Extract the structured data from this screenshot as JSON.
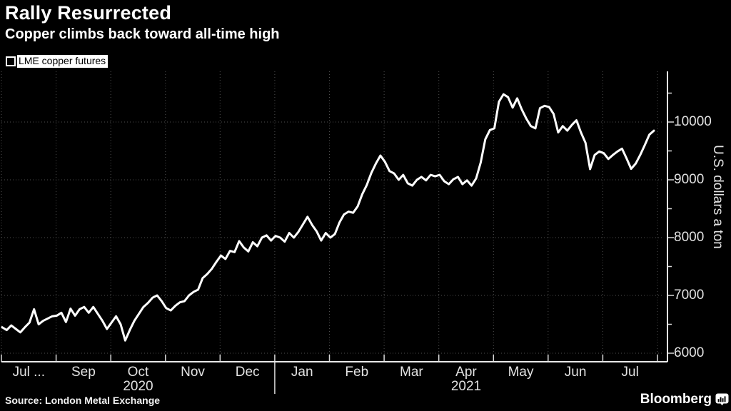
{
  "header": {
    "title": "Rally Resurrected",
    "subtitle": "Copper climbs back toward all-time high"
  },
  "legend": {
    "label": "LME copper futures",
    "swatch_color": "#ffffff"
  },
  "footer": {
    "source": "Source: London Metal Exchange",
    "brand": "Bloomberg"
  },
  "colors": {
    "background": "#000000",
    "line": "#ffffff",
    "grid": "#4e4e4e",
    "axis": "#e8e8e8",
    "text": "#e2e2e2"
  },
  "chart_data": {
    "type": "line",
    "title": "Rally Resurrected",
    "subtitle": "Copper climbs back toward all-time high",
    "series_name": "LME copper futures",
    "ylabel": "U.S. dollars a ton",
    "unit": "USD per ton",
    "ylim": [
      5850,
      10900
    ],
    "y_ticks": [
      6000,
      7000,
      8000,
      9000,
      10000
    ],
    "y_minor_tick_step": 500,
    "grid": true,
    "legend_position": "top-left",
    "x_start_date": "2020-07-24",
    "x_end_date": "2021-07-30",
    "x_axis_months": [
      "Jul ...",
      "Sep",
      "Oct",
      "Nov",
      "Dec",
      "Jan",
      "Feb",
      "Mar",
      "Apr",
      "May",
      "Jun",
      "Jul"
    ],
    "x_axis_years": [
      {
        "label": "2020",
        "month_index": 2
      },
      {
        "label": "2021",
        "month_index": 8
      }
    ],
    "year_divider_tick_index": 5,
    "points_per_month": 12,
    "values_note": "LME copper futures price, ~evenly spaced samples (12 per month slot) from late Jul 2020 to late Jul 2021, read from chart",
    "values": [
      6450,
      6400,
      6480,
      6420,
      6360,
      6450,
      6530,
      6760,
      6500,
      6560,
      6600,
      6640,
      6650,
      6700,
      6540,
      6770,
      6650,
      6760,
      6800,
      6700,
      6800,
      6680,
      6560,
      6420,
      6530,
      6640,
      6500,
      6220,
      6400,
      6560,
      6680,
      6800,
      6870,
      6960,
      7000,
      6900,
      6780,
      6740,
      6820,
      6880,
      6900,
      7000,
      7060,
      7100,
      7300,
      7370,
      7460,
      7580,
      7690,
      7630,
      7770,
      7750,
      7940,
      7830,
      7760,
      7920,
      7850,
      8000,
      8040,
      7950,
      8030,
      8000,
      7930,
      8080,
      8000,
      8100,
      8230,
      8360,
      8220,
      8110,
      7950,
      8080,
      8000,
      8060,
      8260,
      8400,
      8450,
      8430,
      8540,
      8750,
      8910,
      9120,
      9280,
      9420,
      9310,
      9150,
      9110,
      9000,
      9085,
      8940,
      8900,
      9000,
      9050,
      8990,
      9085,
      9060,
      9085,
      8975,
      8925,
      9010,
      9050,
      8925,
      8990,
      8900,
      9025,
      9300,
      9700,
      9860,
      9890,
      10350,
      10480,
      10430,
      10250,
      10410,
      10220,
      10060,
      9930,
      9890,
      10240,
      10280,
      10260,
      10140,
      9820,
      9930,
      9850,
      9950,
      10030,
      9820,
      9640,
      9185,
      9430,
      9490,
      9460,
      9360,
      9430,
      9490,
      9540,
      9370,
      9190,
      9280,
      9430,
      9600,
      9780,
      9850
    ],
    "peak_value": 10480,
    "low_value": 6220
  }
}
